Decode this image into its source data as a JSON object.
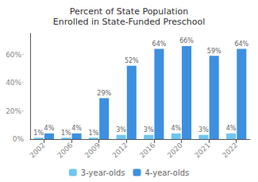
{
  "chart_data": {
    "type": "bar",
    "title": "Percent of State Population\nEnrolled in State-Funded Preschool",
    "categories": [
      "2002",
      "2006",
      "2009",
      "2012",
      "2016",
      "2020",
      "2021",
      "2022"
    ],
    "series": [
      {
        "name": "3-year-olds",
        "color": "#6ec6f0",
        "values": [
          1,
          1,
          1,
          3,
          3,
          4,
          3,
          4
        ],
        "value_labels": [
          "1%",
          "1%",
          "1%",
          "3%",
          "3%",
          "4%",
          "3%",
          "4%"
        ]
      },
      {
        "name": "4-year-olds",
        "color": "#3d8fe0",
        "values": [
          4,
          4,
          29,
          52,
          64,
          66,
          59,
          64
        ],
        "value_labels": [
          "4%",
          "4%",
          "29%",
          "52%",
          "64%",
          "66%",
          "59%",
          "64%"
        ]
      }
    ],
    "ylim": [
      0,
      75
    ],
    "yticks": [
      {
        "value": 0,
        "label": "0%"
      },
      {
        "value": 20,
        "label": "20%·"
      },
      {
        "value": 40,
        "label": "40%·"
      },
      {
        "value": 60,
        "label": "60%·"
      }
    ],
    "grid": false,
    "legend": "bottom",
    "data_labels": true
  }
}
